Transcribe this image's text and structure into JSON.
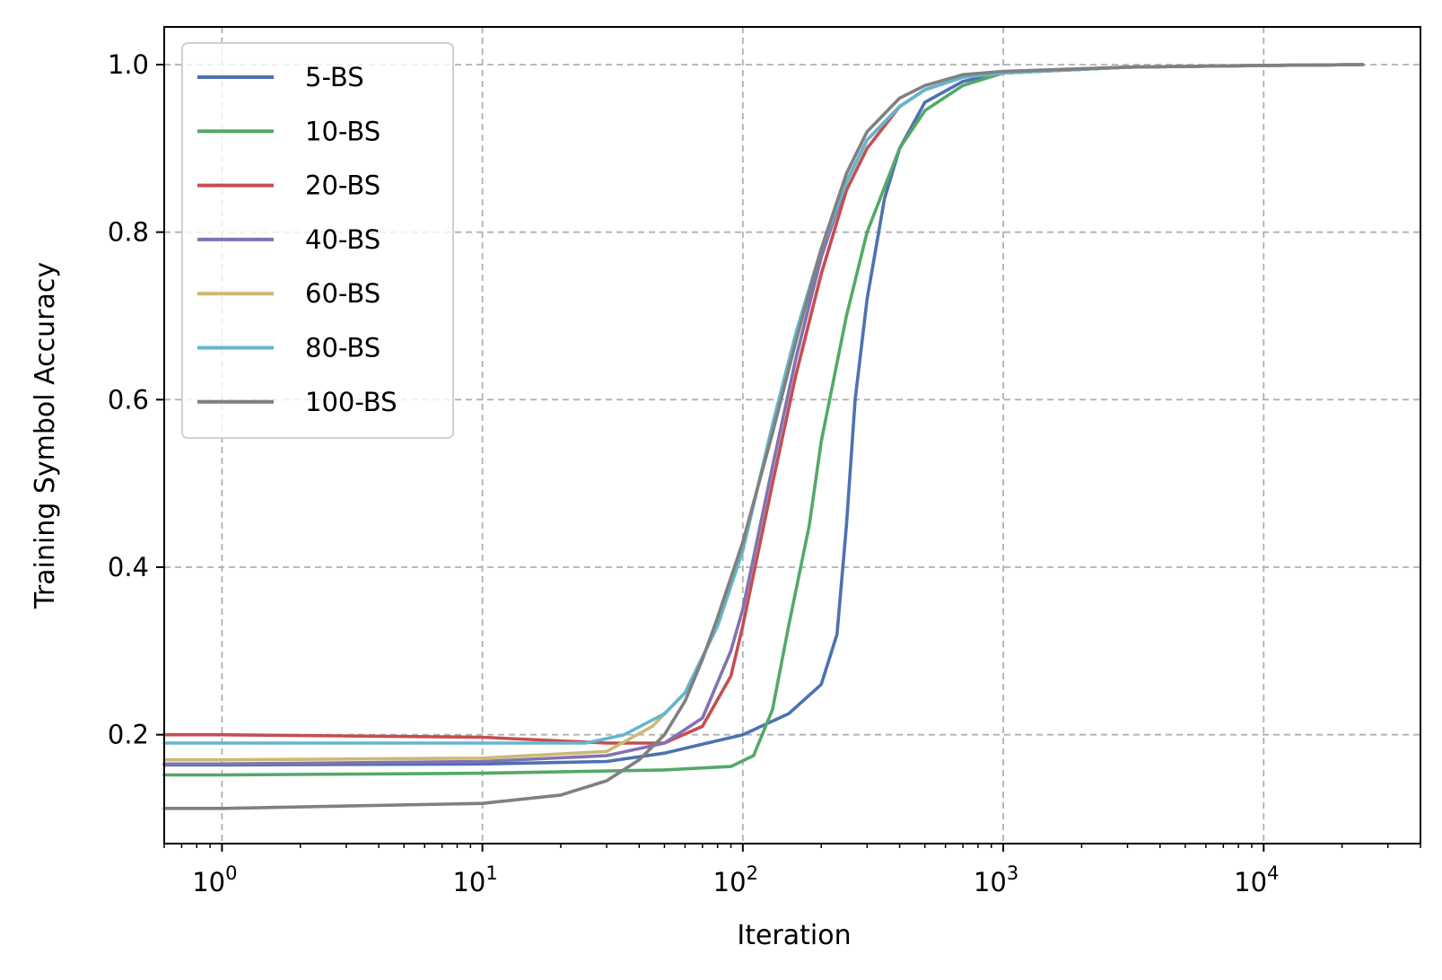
{
  "chart_data": {
    "type": "line",
    "title": "",
    "xlabel": "Iteration",
    "ylabel": "Training Symbol Accuracy",
    "x_scale": "log",
    "xlim": [
      0.6,
      40000
    ],
    "ylim": [
      0.07,
      1.045
    ],
    "grid": true,
    "legend_position": "upper left",
    "x_ticks": [
      {
        "value": 1,
        "base": "10",
        "exp": "0"
      },
      {
        "value": 10,
        "base": "10",
        "exp": "1"
      },
      {
        "value": 100,
        "base": "10",
        "exp": "2"
      },
      {
        "value": 1000,
        "base": "10",
        "exp": "3"
      },
      {
        "value": 10000,
        "base": "10",
        "exp": "4"
      }
    ],
    "y_ticks": [
      {
        "value": 0.2,
        "label": "0.2"
      },
      {
        "value": 0.4,
        "label": "0.4"
      },
      {
        "value": 0.6,
        "label": "0.6"
      },
      {
        "value": 0.8,
        "label": "0.8"
      },
      {
        "value": 1.0,
        "label": "1.0"
      }
    ],
    "series": [
      {
        "name": "5-BS",
        "color": "#4c72b0",
        "x": [
          0.6,
          1,
          10,
          30,
          50,
          100,
          150,
          200,
          230,
          250,
          270,
          300,
          350,
          400,
          500,
          700,
          1000,
          3000,
          10000,
          24000
        ],
        "y": [
          0.164,
          0.164,
          0.165,
          0.168,
          0.178,
          0.2,
          0.225,
          0.26,
          0.32,
          0.45,
          0.6,
          0.72,
          0.84,
          0.9,
          0.955,
          0.98,
          0.99,
          0.997,
          0.999,
          1.0
        ]
      },
      {
        "name": "10-BS",
        "color": "#55a868",
        "x": [
          0.6,
          1,
          10,
          50,
          90,
          110,
          130,
          150,
          180,
          200,
          250,
          300,
          400,
          500,
          700,
          1000,
          3000,
          10000,
          24000
        ],
        "y": [
          0.152,
          0.152,
          0.154,
          0.158,
          0.162,
          0.175,
          0.23,
          0.33,
          0.45,
          0.55,
          0.7,
          0.8,
          0.9,
          0.945,
          0.975,
          0.99,
          0.997,
          0.999,
          1.0
        ]
      },
      {
        "name": "20-BS",
        "color": "#c44e52",
        "x": [
          0.6,
          1,
          10,
          30,
          50,
          70,
          90,
          100,
          130,
          160,
          200,
          250,
          300,
          400,
          500,
          700,
          1000,
          3000,
          10000,
          24000
        ],
        "y": [
          0.2,
          0.2,
          0.197,
          0.19,
          0.19,
          0.21,
          0.27,
          0.33,
          0.5,
          0.63,
          0.75,
          0.85,
          0.9,
          0.95,
          0.97,
          0.985,
          0.99,
          0.997,
          0.999,
          1.0
        ]
      },
      {
        "name": "40-BS",
        "color": "#8172b2",
        "x": [
          0.6,
          1,
          10,
          30,
          50,
          70,
          90,
          100,
          130,
          160,
          200,
          250,
          300,
          400,
          500,
          700,
          1000,
          3000,
          10000,
          24000
        ],
        "y": [
          0.165,
          0.165,
          0.168,
          0.175,
          0.19,
          0.22,
          0.3,
          0.35,
          0.52,
          0.65,
          0.77,
          0.86,
          0.91,
          0.95,
          0.97,
          0.985,
          0.99,
          0.997,
          0.999,
          1.0
        ]
      },
      {
        "name": "60-BS",
        "color": "#ccb974",
        "x": [
          0.6,
          1,
          10,
          30,
          45,
          60,
          80,
          100,
          130,
          160,
          200,
          250,
          300,
          400,
          500,
          700,
          1000,
          3000,
          10000,
          24000
        ],
        "y": [
          0.17,
          0.17,
          0.172,
          0.18,
          0.21,
          0.25,
          0.33,
          0.42,
          0.57,
          0.68,
          0.78,
          0.86,
          0.91,
          0.95,
          0.97,
          0.985,
          0.99,
          0.997,
          0.999,
          1.0
        ]
      },
      {
        "name": "80-BS",
        "color": "#64b5cd",
        "x": [
          0.6,
          1,
          10,
          25,
          35,
          50,
          60,
          80,
          100,
          130,
          160,
          200,
          250,
          300,
          400,
          500,
          700,
          1000,
          3000,
          10000,
          24000
        ],
        "y": [
          0.19,
          0.19,
          0.19,
          0.19,
          0.2,
          0.225,
          0.25,
          0.33,
          0.42,
          0.57,
          0.68,
          0.78,
          0.86,
          0.91,
          0.95,
          0.97,
          0.985,
          0.99,
          0.997,
          0.999,
          1.0
        ]
      },
      {
        "name": "100-BS",
        "color": "#808080",
        "x": [
          0.6,
          1,
          10,
          20,
          30,
          40,
          50,
          60,
          70,
          80,
          100,
          130,
          160,
          200,
          250,
          300,
          400,
          500,
          700,
          1000,
          3000,
          10000,
          24000
        ],
        "y": [
          0.112,
          0.112,
          0.118,
          0.128,
          0.145,
          0.17,
          0.2,
          0.24,
          0.29,
          0.34,
          0.43,
          0.56,
          0.67,
          0.78,
          0.87,
          0.92,
          0.96,
          0.975,
          0.988,
          0.992,
          0.997,
          0.999,
          1.0
        ]
      }
    ]
  }
}
